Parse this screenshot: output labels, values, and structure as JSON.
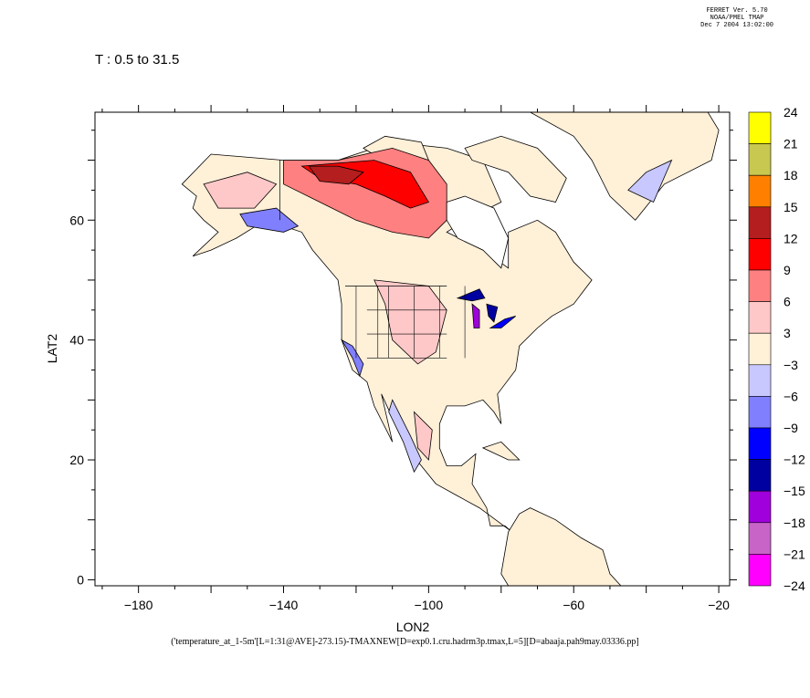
{
  "header": {
    "software": "FERRET Ver. 5.70",
    "org": "NOAA/PMEL TMAP",
    "timestamp": "Dec  7 2004 13:02:00"
  },
  "time_range": "T : 0.5 to 31.5",
  "axes": {
    "xlabel": "LON2",
    "ylabel": "LAT2",
    "xticks": [
      "−180",
      "−140",
      "−100",
      "−60",
      "−20"
    ],
    "xtick_values": [
      -180,
      -140,
      -100,
      -60,
      -20
    ],
    "yticks": [
      "0",
      "20",
      "40",
      "60"
    ],
    "ytick_values": [
      0,
      20,
      40,
      60
    ],
    "xlim": [
      -192,
      -17
    ],
    "ylim": [
      -1,
      78
    ]
  },
  "footnote": "('temperature_at_1-5m'[L=1:31@AVE]-273.15)-TMAXNEW[D=exp0.1.cru.hadrm3p.tmax,L=5][D=abaaja.pah9may.03336.pp]",
  "colorbar": {
    "labels": [
      "24",
      "21",
      "18",
      "15",
      "12",
      "9",
      "6",
      "3",
      "−3",
      "−6",
      "−9",
      "−12",
      "−15",
      "−18",
      "−21",
      "−24"
    ],
    "colors": [
      "#ffff00",
      "#c8c850",
      "#ff8000",
      "#b41e1e",
      "#ff0000",
      "#ff8080",
      "#ffc8c8",
      "#fff0d8",
      "#c8c8ff",
      "#8080ff",
      "#0000ff",
      "#0000a0",
      "#a000dc",
      "#c864c8",
      "#ff00ff"
    ]
  },
  "map_regions": [
    {
      "name": "north-america-land",
      "level": "#fff0d8",
      "outline": [
        [
          -168,
          66
        ],
        [
          -160,
          71
        ],
        [
          -140,
          70
        ],
        [
          -125,
          70
        ],
        [
          -110,
          73
        ],
        [
          -95,
          72
        ],
        [
          -85,
          70
        ],
        [
          -80,
          63
        ],
        [
          -90,
          60
        ],
        [
          -95,
          58
        ],
        [
          -85,
          55
        ],
        [
          -78,
          52
        ],
        [
          -78,
          58
        ],
        [
          -70,
          60
        ],
        [
          -65,
          58
        ],
        [
          -60,
          53
        ],
        [
          -55,
          50
        ],
        [
          -60,
          46
        ],
        [
          -66,
          44
        ],
        [
          -70,
          42
        ],
        [
          -75,
          39
        ],
        [
          -76,
          35
        ],
        [
          -81,
          31
        ],
        [
          -80,
          26
        ],
        [
          -82,
          28
        ],
        [
          -85,
          30
        ],
        [
          -90,
          29
        ],
        [
          -95,
          29
        ],
        [
          -97,
          26
        ],
        [
          -97,
          22
        ],
        [
          -95,
          19
        ],
        [
          -91,
          19
        ],
        [
          -87,
          21
        ],
        [
          -88,
          16
        ],
        [
          -84,
          12
        ],
        [
          -83,
          9
        ],
        [
          -79,
          9
        ],
        [
          -77,
          8
        ],
        [
          -86,
          12
        ],
        [
          -92,
          14
        ],
        [
          -98,
          16
        ],
        [
          -106,
          22
        ],
        [
          -110,
          27
        ],
        [
          -113,
          31
        ],
        [
          -110,
          23
        ],
        [
          -115,
          29
        ],
        [
          -117,
          33
        ],
        [
          -121,
          35
        ],
        [
          -124,
          40
        ],
        [
          -124,
          46
        ],
        [
          -125,
          50
        ],
        [
          -132,
          55
        ],
        [
          -135,
          58
        ],
        [
          -145,
          60
        ],
        [
          -153,
          57
        ],
        [
          -160,
          55
        ],
        [
          -165,
          54
        ],
        [
          -158,
          58
        ],
        [
          -162,
          60
        ],
        [
          -165,
          62
        ],
        [
          -164,
          64
        ],
        [
          -168,
          66
        ]
      ]
    },
    {
      "name": "greenland",
      "level": "#fff0d8",
      "outline": [
        [
          -72,
          78
        ],
        [
          -60,
          82
        ],
        [
          -40,
          83
        ],
        [
          -25,
          80
        ],
        [
          -20,
          75
        ],
        [
          -22,
          70
        ],
        [
          -35,
          66
        ],
        [
          -43,
          60
        ],
        [
          -50,
          64
        ],
        [
          -55,
          70
        ],
        [
          -60,
          74
        ],
        [
          -72,
          78
        ]
      ]
    },
    {
      "name": "baffin-island",
      "level": "#fff0d8",
      "outline": [
        [
          -90,
          72
        ],
        [
          -80,
          74
        ],
        [
          -70,
          72
        ],
        [
          -62,
          67
        ],
        [
          -65,
          63
        ],
        [
          -72,
          64
        ],
        [
          -78,
          68
        ],
        [
          -88,
          70
        ],
        [
          -90,
          72
        ]
      ]
    },
    {
      "name": "victoria-island",
      "level": "#fff0d8",
      "outline": [
        [
          -118,
          72
        ],
        [
          -112,
          74
        ],
        [
          -102,
          73
        ],
        [
          -100,
          70
        ],
        [
          -110,
          69
        ],
        [
          -118,
          72
        ]
      ]
    },
    {
      "name": "south-america-land",
      "level": "#fff0d8",
      "outline": [
        [
          -78,
          8
        ],
        [
          -75,
          11
        ],
        [
          -72,
          12
        ],
        [
          -65,
          10
        ],
        [
          -58,
          7
        ],
        [
          -52,
          5
        ],
        [
          -50,
          1
        ],
        [
          -47,
          -1
        ],
        [
          -60,
          -1
        ],
        [
          -70,
          -1
        ],
        [
          -78,
          -1
        ],
        [
          -80,
          1
        ],
        [
          -78,
          8
        ]
      ]
    },
    {
      "name": "cuba",
      "level": "#fff0d8",
      "outline": [
        [
          -85,
          22
        ],
        [
          -80,
          23
        ],
        [
          -75,
          20
        ],
        [
          -78,
          20
        ],
        [
          -85,
          22
        ]
      ]
    },
    {
      "name": "africa-edge",
      "level": "#ffffff",
      "outline": [
        [
          -17,
          30
        ],
        [
          -10,
          36
        ],
        [
          -10,
          20
        ],
        [
          -15,
          10
        ],
        [
          -17,
          15
        ],
        [
          -17,
          30
        ]
      ]
    },
    {
      "name": "warm-anomaly-north",
      "level": "#ff8080",
      "outline": [
        [
          -140,
          70
        ],
        [
          -125,
          70
        ],
        [
          -110,
          72
        ],
        [
          -100,
          70
        ],
        [
          -95,
          66
        ],
        [
          -95,
          60
        ],
        [
          -100,
          57
        ],
        [
          -110,
          58
        ],
        [
          -120,
          60
        ],
        [
          -130,
          63
        ],
        [
          -140,
          66
        ],
        [
          -140,
          70
        ]
      ]
    },
    {
      "name": "hot-core-northwest",
      "level": "#ff0000",
      "outline": [
        [
          -135,
          69
        ],
        [
          -125,
          69.5
        ],
        [
          -115,
          70
        ],
        [
          -105,
          68
        ],
        [
          -100,
          63
        ],
        [
          -105,
          62
        ],
        [
          -112,
          64
        ],
        [
          -120,
          66
        ],
        [
          -130,
          67
        ],
        [
          -135,
          69
        ]
      ]
    },
    {
      "name": "hot-core-dark",
      "level": "#b41e1e",
      "outline": [
        [
          -133,
          69
        ],
        [
          -125,
          69
        ],
        [
          -118,
          68
        ],
        [
          -122,
          66
        ],
        [
          -130,
          66.5
        ],
        [
          -133,
          69
        ]
      ]
    },
    {
      "name": "warm-plains",
      "level": "#ffc8c8",
      "outline": [
        [
          -115,
          50
        ],
        [
          -100,
          49
        ],
        [
          -95,
          45
        ],
        [
          -98,
          38
        ],
        [
          -103,
          36
        ],
        [
          -110,
          40
        ],
        [
          -112,
          46
        ],
        [
          -115,
          50
        ]
      ]
    },
    {
      "name": "warm-alaska-west",
      "level": "#ffc8c8",
      "outline": [
        [
          -162,
          66
        ],
        [
          -150,
          68
        ],
        [
          -142,
          66
        ],
        [
          -148,
          62
        ],
        [
          -158,
          62
        ],
        [
          -162,
          66
        ]
      ]
    },
    {
      "name": "warm-mexico",
      "level": "#ffc8c8",
      "outline": [
        [
          -104,
          28
        ],
        [
          -99,
          25
        ],
        [
          -100,
          20
        ],
        [
          -103,
          22
        ],
        [
          -104,
          28
        ]
      ]
    },
    {
      "name": "cool-alaska-coast",
      "level": "#8080ff",
      "outline": [
        [
          -152,
          61
        ],
        [
          -142,
          62
        ],
        [
          -136,
          59
        ],
        [
          -140,
          58
        ],
        [
          -150,
          59
        ],
        [
          -152,
          61
        ]
      ]
    },
    {
      "name": "cool-west-coast",
      "level": "#8080ff",
      "outline": [
        [
          -124,
          40
        ],
        [
          -121,
          37
        ],
        [
          -119,
          34
        ],
        [
          -118,
          36
        ],
        [
          -121,
          39
        ],
        [
          -124,
          40
        ]
      ]
    },
    {
      "name": "cool-sierra-madre",
      "level": "#c8c8ff",
      "outline": [
        [
          -110,
          30
        ],
        [
          -105,
          24
        ],
        [
          -102,
          20
        ],
        [
          -104,
          18
        ],
        [
          -107,
          23
        ],
        [
          -111,
          28
        ],
        [
          -110,
          30
        ]
      ]
    },
    {
      "name": "cool-greenland",
      "level": "#c8c8ff",
      "outline": [
        [
          -45,
          65
        ],
        [
          -40,
          68
        ],
        [
          -33,
          70
        ],
        [
          -38,
          63
        ],
        [
          -45,
          65
        ]
      ]
    },
    {
      "name": "lake-superior",
      "level": "#0000a0",
      "outline": [
        [
          -92,
          47
        ],
        [
          -86,
          48.5
        ],
        [
          -84.5,
          47
        ],
        [
          -88,
          46.5
        ],
        [
          -92,
          47
        ]
      ]
    },
    {
      "name": "lake-michigan-huron",
      "level": "#a000dc",
      "outline": [
        [
          -88,
          46
        ],
        [
          -86,
          45
        ],
        [
          -86,
          42
        ],
        [
          -87.5,
          42
        ],
        [
          -88,
          46
        ]
      ]
    },
    {
      "name": "lake-huron",
      "level": "#0000a0",
      "outline": [
        [
          -84,
          46
        ],
        [
          -81,
          45.5
        ],
        [
          -82,
          43
        ],
        [
          -83.5,
          44
        ],
        [
          -84,
          46
        ]
      ]
    },
    {
      "name": "lake-erie-ontario",
      "level": "#0000ff",
      "outline": [
        [
          -83,
          42
        ],
        [
          -79,
          43.5
        ],
        [
          -76,
          44
        ],
        [
          -80,
          42
        ],
        [
          -83,
          42
        ]
      ]
    },
    {
      "name": "hudson-bay-water",
      "level": "#ffffff",
      "outline": [
        [
          -95,
          63
        ],
        [
          -90,
          64
        ],
        [
          -82,
          62
        ],
        [
          -78,
          57
        ],
        [
          -80,
          52
        ],
        [
          -85,
          55
        ],
        [
          -92,
          57
        ],
        [
          -95,
          60
        ],
        [
          -95,
          63
        ]
      ]
    }
  ]
}
